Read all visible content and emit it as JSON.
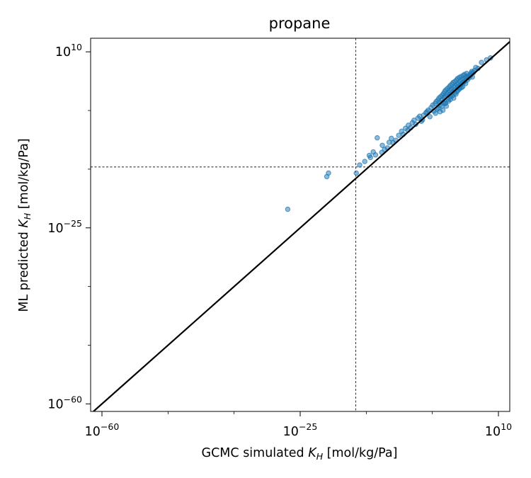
{
  "chart_data": {
    "type": "scatter",
    "title": "propane",
    "xlabel": {
      "prefix": "GCMC simulated ",
      "var": "K",
      "sub": "H",
      "suffix": " [mol/kg/Pa]"
    },
    "ylabel": {
      "prefix": "ML predicted ",
      "var": "K",
      "sub": "H",
      "suffix": " [mol/kg/Pa]"
    },
    "scale": "log",
    "xlim_exp": [
      -62,
      12
    ],
    "ylim_exp": [
      -61.5,
      12.7
    ],
    "major_ticks_exp": [
      -60,
      -25,
      10
    ],
    "minor_ticks_exp": [
      -48.33,
      -36.67,
      -13.33,
      -1.67
    ],
    "reference_line": "y = x",
    "crosshair_exp": {
      "x": -15.2,
      "y": -12.9
    },
    "marker_color": "#1f77b4",
    "line_color": "#000000",
    "points_exp": [
      [
        -27.2,
        -21.3
      ],
      [
        -20.3,
        -14.8
      ],
      [
        -20.0,
        -14.1
      ],
      [
        -15.1,
        -14.1
      ],
      [
        -14.5,
        -12.5
      ],
      [
        -13.6,
        -11.8
      ],
      [
        -12.6,
        -11.0
      ],
      [
        -11.4,
        -7.1
      ],
      [
        -12.1,
        -9.9
      ],
      [
        -10.5,
        -8.6
      ],
      [
        -10.1,
        -9.4
      ],
      [
        -10.6,
        -10.0
      ],
      [
        -9.6,
        -9.1
      ],
      [
        -8.9,
        -7.2
      ],
      [
        -8.6,
        -8.1
      ],
      [
        -8.1,
        -7.6
      ],
      [
        -7.1,
        -5.8
      ],
      [
        -6.8,
        -6.4
      ],
      [
        -6.0,
        -5.6
      ],
      [
        -5.9,
        -4.6
      ],
      [
        -5.2,
        -4.1
      ],
      [
        -4.6,
        -4.4
      ],
      [
        -4.2,
        -3.2
      ],
      [
        -3.6,
        -3.8
      ],
      [
        -3.2,
        -2.6
      ],
      [
        -2.8,
        -2.1
      ],
      [
        -2.4,
        -1.6
      ],
      [
        -2.1,
        -2.9
      ],
      [
        -1.9,
        -1.1
      ],
      [
        -1.6,
        -0.6
      ],
      [
        -1.4,
        -1.8
      ],
      [
        -1.2,
        -0.3
      ],
      [
        -1.0,
        0.1
      ],
      [
        -0.8,
        -1.4
      ],
      [
        -0.7,
        0.4
      ],
      [
        -0.5,
        0.8
      ],
      [
        -0.3,
        -0.6
      ],
      [
        -0.2,
        1.1
      ],
      [
        0.0,
        0.4
      ],
      [
        0.1,
        1.4
      ],
      [
        0.2,
        -1.6
      ],
      [
        0.3,
        1.7
      ],
      [
        0.4,
        0.9
      ],
      [
        0.5,
        2.1
      ],
      [
        0.6,
        1.2
      ],
      [
        0.7,
        2.4
      ],
      [
        0.8,
        -0.8
      ],
      [
        0.9,
        1.6
      ],
      [
        1.0,
        2.7
      ],
      [
        1.1,
        1.9
      ],
      [
        1.2,
        0.2
      ],
      [
        1.3,
        3.0
      ],
      [
        1.4,
        2.3
      ],
      [
        1.5,
        3.3
      ],
      [
        1.6,
        1.1
      ],
      [
        1.7,
        2.6
      ],
      [
        1.8,
        3.6
      ],
      [
        1.9,
        2.0
      ],
      [
        2.0,
        3.9
      ],
      [
        2.1,
        0.8
      ],
      [
        2.2,
        2.9
      ],
      [
        2.3,
        4.1
      ],
      [
        2.4,
        3.2
      ],
      [
        2.5,
        1.6
      ],
      [
        2.6,
        4.4
      ],
      [
        2.7,
        3.5
      ],
      [
        2.8,
        4.7
      ],
      [
        2.9,
        2.4
      ],
      [
        3.0,
        3.8
      ],
      [
        3.1,
        4.9
      ],
      [
        3.2,
        2.9
      ],
      [
        3.3,
        4.2
      ],
      [
        3.4,
        5.1
      ],
      [
        3.5,
        3.6
      ],
      [
        3.6,
        4.6
      ],
      [
        3.7,
        3.1
      ],
      [
        3.8,
        5.3
      ],
      [
        3.9,
        4.0
      ],
      [
        4.0,
        5.5
      ],
      [
        4.1,
        4.6
      ],
      [
        4.2,
        3.7
      ],
      [
        4.3,
        5.1
      ],
      [
        4.4,
        5.7
      ],
      [
        4.5,
        4.4
      ],
      [
        4.7,
        5.2
      ],
      [
        4.8,
        4.8
      ],
      [
        5.0,
        5.5
      ],
      [
        5.2,
        5.8
      ],
      [
        5.4,
        5.0
      ],
      [
        5.6,
        5.9
      ],
      [
        -0.6,
        -1.2
      ],
      [
        -0.4,
        0.0
      ],
      [
        0.0,
        -0.8
      ],
      [
        0.3,
        0.0
      ],
      [
        0.7,
        -0.2
      ],
      [
        1.1,
        0.6
      ],
      [
        1.5,
        0.5
      ],
      [
        1.9,
        1.3
      ],
      [
        2.3,
        1.8
      ],
      [
        2.7,
        2.1
      ],
      [
        3.1,
        2.6
      ],
      [
        3.5,
        2.9
      ],
      [
        -1.1,
        -2.2
      ],
      [
        -0.3,
        -1.9
      ],
      [
        0.5,
        -0.3
      ],
      [
        1.4,
        1.5
      ],
      [
        2.2,
        2.4
      ],
      [
        2.8,
        3.0
      ],
      [
        3.3,
        3.4
      ],
      [
        3.7,
        3.9
      ],
      [
        4.1,
        4.2
      ],
      [
        4.6,
        4.9
      ],
      [
        5.1,
        5.3
      ],
      [
        5.3,
        6.1
      ],
      [
        7.0,
        7.9
      ],
      [
        8.6,
        8.8
      ],
      [
        7.9,
        8.4
      ],
      [
        6.4,
        6.7
      ],
      [
        6.0,
        6.9
      ],
      [
        5.8,
        6.3
      ],
      [
        -12.8,
        -10.6
      ],
      [
        -11.7,
        -10.5
      ],
      [
        -9.3,
        -8.0
      ],
      [
        -7.6,
        -6.6
      ],
      [
        -6.4,
        -5.2
      ],
      [
        -5.5,
        -5.1
      ],
      [
        -4.9,
        -3.6
      ],
      [
        -3.9,
        -2.8
      ],
      [
        -3.4,
        -3.5
      ],
      [
        -2.6,
        -1.9
      ]
    ]
  }
}
